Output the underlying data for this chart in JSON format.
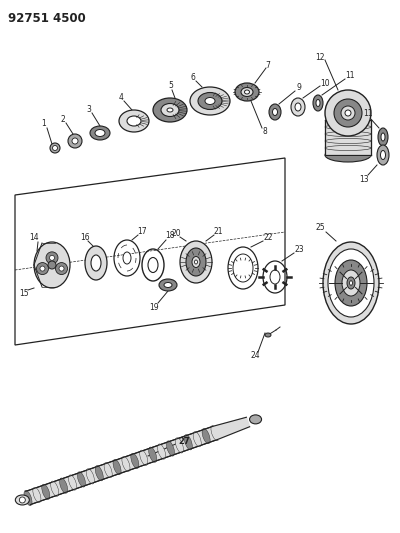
{
  "title": "92751 4500",
  "bg_color": "#ffffff",
  "line_color": "#222222",
  "figure_width": 4.0,
  "figure_height": 5.33,
  "dpi": 100
}
